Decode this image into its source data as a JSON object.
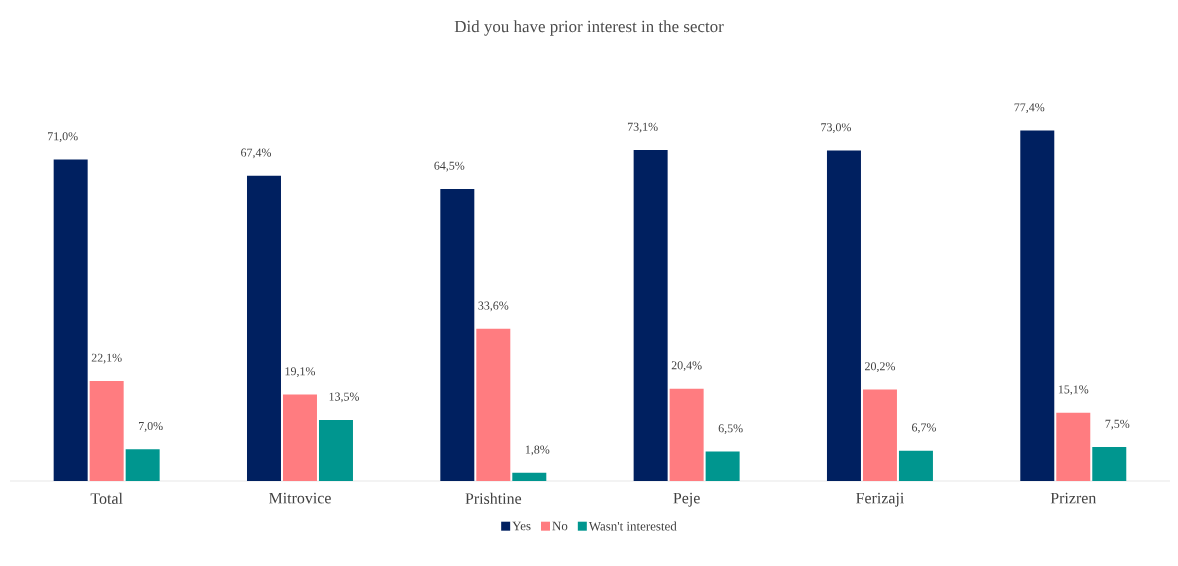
{
  "chart_data": {
    "type": "bar",
    "title": "Did you have prior interest in the sector",
    "categories": [
      "Total",
      "Mitrovice",
      "Prishtine",
      "Peje",
      "Ferizaji",
      "Prizren"
    ],
    "legend": "bottom",
    "series": [
      {
        "name": "Yes",
        "color": "#002060",
        "values": [
          71.0,
          67.4,
          64.5,
          73.1,
          73.0,
          77.4
        ],
        "value_labels": [
          "71,0%",
          "67,4%",
          "64,5%",
          "73,1%",
          "73,0%",
          "77,4%"
        ]
      },
      {
        "name": "No",
        "color": "#ff7c80",
        "values": [
          22.1,
          19.1,
          33.6,
          20.4,
          20.2,
          15.1
        ],
        "value_labels": [
          "22,1%",
          "19,1%",
          "33,6%",
          "20,4%",
          "20,2%",
          "15,1%"
        ]
      },
      {
        "name": "Wasn't interested",
        "color": "#00968f",
        "values": [
          7.0,
          13.5,
          1.8,
          6.5,
          6.7,
          7.5
        ],
        "value_labels": [
          "7,0%",
          "13,5%",
          "1,8%",
          "6,5%",
          "6,7%",
          "7,5%"
        ]
      }
    ]
  }
}
